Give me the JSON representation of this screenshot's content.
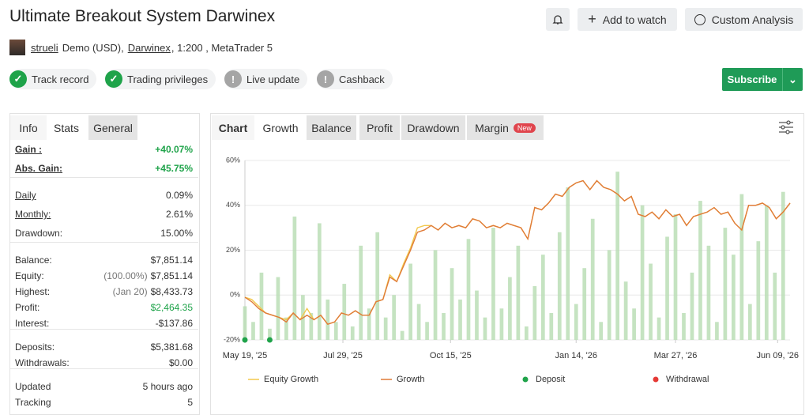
{
  "header": {
    "title": "Ultimate Breakout System Darwinex",
    "user": "strueli",
    "account": "Demo (USD),",
    "broker": "Darwinex",
    "details": ", 1:200 , MetaTrader 5",
    "buttons": [
      "Add to watch",
      "Custom Analysis"
    ],
    "subscribe": "Subscribe"
  },
  "badges": [
    {
      "label": "Track record",
      "color": "#1fa34a"
    },
    {
      "label": "Trading privileges",
      "color": "#1fa34a"
    },
    {
      "label": "Live update",
      "color": "#a5a5a5"
    },
    {
      "label": "Cashback",
      "color": "#a5a5a5"
    }
  ],
  "stats_panel": {
    "tabs": [
      "Info",
      "Stats",
      "General"
    ],
    "groups": [
      [
        {
          "label": "Gain :",
          "value": "+40.07%",
          "color": "#1fa34a"
        },
        {
          "label": "Abs. Gain:",
          "value": "+45.75%",
          "color": "#1fa34a"
        }
      ],
      [
        {
          "label": "Daily",
          "value": "0.09%"
        },
        {
          "label": "Monthly:",
          "value": "2.61%"
        },
        {
          "label": "Drawdown:",
          "value": "15.00%"
        }
      ],
      [
        {
          "label": "Balance:",
          "value": "$7,851.14"
        },
        {
          "label": "Equity:",
          "note": "(100.00%)",
          "value": "$7,851.14"
        },
        {
          "label": "Highest:",
          "note": "(Jan 20)",
          "value": "$8,433.73"
        },
        {
          "label": "Profit:",
          "value": "$2,464.35",
          "color": "#1fa34a"
        },
        {
          "label": "Interest:",
          "value": "-$137.86"
        }
      ],
      [
        {
          "label": "Deposits:",
          "value": "$5,381.68"
        },
        {
          "label": "Withdrawals:",
          "value": "$0.00"
        }
      ],
      [
        {
          "label": "Updated",
          "value": "5 hours ago"
        },
        {
          "label": "Tracking",
          "value": "5"
        }
      ]
    ]
  },
  "chart_panel": {
    "tabs": [
      "Chart",
      "Growth",
      "Balance",
      "Profit",
      "Drawdown",
      "Margin"
    ],
    "new_badge": "New"
  },
  "chart": {
    "type": "line",
    "xlim": [
      0,
      395
    ],
    "xticks": [
      {
        "value": 0,
        "label": "May 19, '25"
      },
      {
        "value": 71,
        "label": "Jul 29, '25"
      },
      {
        "value": 149,
        "label": "Oct 15, '25"
      },
      {
        "value": 240,
        "label": "Jan 14, '26"
      },
      {
        "value": 312,
        "label": "Mar 27, '26"
      },
      {
        "value": 386,
        "label": "Jun 09, '26"
      }
    ],
    "ylim": [
      -20,
      60
    ],
    "yticks": [
      {
        "value": -20,
        "label": "-20%"
      },
      {
        "value": 0,
        "label": "0%"
      },
      {
        "value": 20,
        "label": "20%"
      },
      {
        "value": 40,
        "label": "40%"
      },
      {
        "value": 60,
        "label": "60%"
      }
    ],
    "grid": true,
    "x": [
      0,
      5,
      10,
      15,
      20,
      25,
      30,
      35,
      40,
      45,
      50,
      55,
      60,
      65,
      70,
      75,
      80,
      85,
      90,
      95,
      100,
      105,
      110,
      115,
      120,
      125,
      130,
      135,
      140,
      145,
      150,
      155,
      160,
      165,
      170,
      175,
      180,
      185,
      190,
      195,
      200,
      205,
      210,
      215,
      220,
      225,
      230,
      235,
      240,
      245,
      250,
      255,
      260,
      265,
      270,
      275,
      280,
      285,
      290,
      295,
      300,
      305,
      310,
      315,
      320,
      325,
      330,
      335,
      340,
      345,
      350,
      355,
      360,
      365,
      370,
      375,
      380,
      385,
      390,
      395
    ],
    "series": [
      {
        "name": "Equity Growth",
        "color": "#f2c94c",
        "values": [
          -1,
          -2,
          -5,
          -8,
          -9,
          -10,
          -11,
          -8,
          -11,
          -6,
          -11,
          -9,
          -13,
          -12,
          -8,
          -9,
          -7,
          -9,
          -9,
          -3,
          -2,
          9,
          6,
          14,
          21,
          30,
          31,
          31,
          29,
          32,
          30,
          31,
          30,
          34,
          33,
          30,
          31,
          30,
          32,
          31,
          30,
          25,
          39,
          38,
          41,
          45,
          44,
          48,
          50,
          51,
          47,
          51,
          48,
          47,
          45,
          42,
          44,
          36,
          35,
          37,
          34,
          38,
          35,
          36,
          31,
          35,
          36,
          37,
          39,
          36,
          37,
          32,
          29,
          40,
          40,
          41,
          39,
          34,
          37,
          41
        ]
      },
      {
        "name": "Growth",
        "color": "#e07b39",
        "values": [
          -1,
          -3,
          -6,
          -8,
          -9,
          -10,
          -12,
          -8,
          -11,
          -9,
          -11,
          -9,
          -13,
          -12,
          -8,
          -9,
          -7,
          -9,
          -9,
          -3,
          -2,
          8,
          6,
          13,
          20,
          28,
          29,
          31,
          29,
          32,
          30,
          31,
          30,
          34,
          33,
          30,
          31,
          30,
          32,
          31,
          30,
          25,
          39,
          38,
          41,
          45,
          44,
          48,
          50,
          51,
          47,
          51,
          48,
          47,
          45,
          42,
          44,
          36,
          35,
          37,
          34,
          38,
          35,
          36,
          31,
          35,
          36,
          37,
          39,
          36,
          37,
          32,
          29,
          40,
          40,
          41,
          39,
          34,
          37,
          41
        ]
      }
    ],
    "bars": {
      "color": "#b7dcb2",
      "x": [
        0,
        6,
        12,
        18,
        24,
        30,
        36,
        42,
        48,
        54,
        60,
        66,
        72,
        78,
        84,
        90,
        96,
        102,
        108,
        114,
        120,
        126,
        132,
        138,
        144,
        150,
        156,
        162,
        168,
        174,
        180,
        186,
        192,
        198,
        204,
        210,
        216,
        222,
        228,
        234,
        240,
        246,
        252,
        258,
        264,
        270,
        276,
        282,
        288,
        294,
        300,
        306,
        312,
        318,
        324,
        330,
        336,
        342,
        348,
        354,
        360,
        366,
        372,
        378,
        384,
        390
      ],
      "values": [
        -5,
        -12,
        10,
        -15,
        8,
        -10,
        35,
        0,
        -8,
        32,
        -2,
        -12,
        5,
        -14,
        22,
        -6,
        28,
        -10,
        0,
        -16,
        14,
        -4,
        -12,
        20,
        -8,
        12,
        -2,
        25,
        2,
        -10,
        30,
        -6,
        8,
        22,
        -14,
        4,
        18,
        -8,
        28,
        48,
        -4,
        12,
        34,
        -12,
        20,
        55,
        6,
        -6,
        40,
        14,
        -10,
        26,
        36,
        -8,
        10,
        42,
        22,
        -12,
        30,
        18,
        45,
        -4,
        24,
        40,
        10,
        46
      ]
    },
    "markers": [
      {
        "name": "Deposit",
        "color": "#1fa34a",
        "x": [
          0,
          18
        ],
        "values": [
          -20,
          -20
        ]
      },
      {
        "name": "Withdrawal",
        "color": "#e53935",
        "x": [],
        "values": []
      }
    ]
  }
}
